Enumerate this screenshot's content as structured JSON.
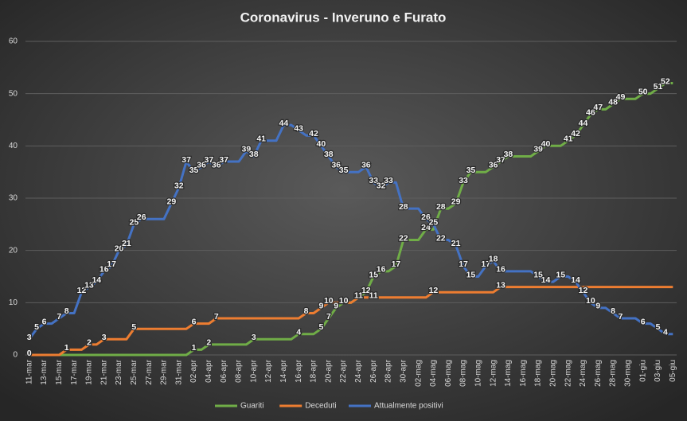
{
  "chart_data": {
    "type": "line",
    "title": "Coronavirus  - Inveruno  e Furato",
    "categories": [
      "11-mar",
      null,
      "13-mar",
      null,
      "15-mar",
      null,
      "17-mar",
      null,
      "19-mar",
      null,
      "21-mar",
      null,
      "23-mar",
      null,
      "25-mar",
      null,
      "27-mar",
      null,
      "29-mar",
      null,
      "31-mar",
      null,
      "02-apr",
      null,
      "04-apr",
      null,
      "06-apr",
      null,
      "08-apr",
      null,
      "10-apr",
      null,
      "12-apr",
      null,
      "14-apr",
      null,
      "16-apr",
      null,
      "18-apr",
      null,
      "20-apr",
      null,
      "22-apr",
      null,
      "24-apr",
      null,
      "26-apr",
      null,
      "28-apr",
      null,
      "30-apr",
      null,
      "02-mag",
      null,
      "04-mag",
      null,
      "06-mag",
      null,
      "08-mag",
      null,
      "10-mag",
      null,
      "12-mag",
      null,
      "14-mag",
      null,
      "16-mag",
      null,
      "18-mag",
      null,
      "20-mag",
      null,
      "22-mag",
      null,
      "24-mag",
      null,
      "26-mag",
      null,
      "28-mag",
      null,
      "30-mag",
      null,
      "01-giu",
      null,
      "03-giu",
      null,
      "05-giu"
    ],
    "series": [
      {
        "name": "Guariti",
        "color": "#70ad47",
        "values": [
          0,
          0,
          0,
          0,
          0,
          0,
          0,
          0,
          0,
          0,
          0,
          0,
          0,
          0,
          0,
          0,
          0,
          0,
          0,
          0,
          0,
          0,
          1,
          1,
          2,
          2,
          2,
          2,
          2,
          2,
          3,
          3,
          3,
          3,
          3,
          3,
          4,
          4,
          4,
          5,
          7,
          9,
          10,
          10,
          11,
          12,
          15,
          16,
          16,
          17,
          22,
          22,
          22,
          24,
          24,
          28,
          28,
          29,
          33,
          35,
          35,
          35,
          36,
          37,
          38,
          38,
          38,
          38,
          39,
          40,
          40,
          40,
          41,
          42,
          44,
          46,
          47,
          47,
          48,
          49,
          49,
          49,
          50,
          50,
          51,
          52,
          52
        ],
        "value_labels": [
          null,
          null,
          null,
          null,
          null,
          null,
          null,
          null,
          null,
          null,
          null,
          null,
          null,
          null,
          null,
          null,
          null,
          null,
          null,
          null,
          null,
          null,
          "1",
          null,
          "2",
          null,
          null,
          null,
          null,
          null,
          "3",
          null,
          null,
          null,
          null,
          null,
          "4",
          null,
          null,
          "5",
          "7",
          "9",
          "10",
          null,
          "11",
          "12",
          "15",
          "16",
          null,
          "17",
          "22",
          null,
          null,
          "24",
          null,
          "28",
          null,
          "29",
          "33",
          "35",
          null,
          null,
          "36",
          "37",
          "38",
          null,
          null,
          null,
          "39",
          "40",
          null,
          null,
          "41",
          "42",
          "44",
          "46",
          "47",
          null,
          "48",
          "49",
          null,
          null,
          "50",
          null,
          "51",
          "52",
          null
        ]
      },
      {
        "name": "Deceduti",
        "color": "#ed7d31",
        "values": [
          0,
          0,
          0,
          0,
          0,
          1,
          1,
          1,
          2,
          2,
          3,
          3,
          3,
          3,
          5,
          5,
          5,
          5,
          5,
          5,
          5,
          5,
          6,
          6,
          6,
          7,
          7,
          7,
          7,
          7,
          7,
          7,
          7,
          7,
          7,
          7,
          7,
          8,
          8,
          9,
          10,
          10,
          10,
          10,
          11,
          11,
          11,
          11,
          11,
          11,
          11,
          11,
          11,
          11,
          12,
          12,
          12,
          12,
          12,
          12,
          12,
          12,
          12,
          13,
          13,
          13,
          13,
          13,
          13,
          13,
          13,
          13,
          13,
          13,
          13,
          13,
          13,
          13,
          13,
          13,
          13,
          13,
          13,
          13,
          13,
          13,
          13
        ],
        "value_labels": [
          "0",
          null,
          null,
          null,
          null,
          "1",
          null,
          null,
          "2",
          null,
          "3",
          null,
          null,
          null,
          "5",
          null,
          null,
          null,
          null,
          null,
          null,
          null,
          "6",
          null,
          null,
          "7",
          null,
          null,
          null,
          null,
          null,
          null,
          null,
          null,
          null,
          null,
          null,
          "8",
          null,
          "9",
          "10",
          null,
          "10",
          null,
          "11",
          null,
          "11",
          null,
          null,
          null,
          null,
          null,
          null,
          null,
          "12",
          null,
          null,
          null,
          null,
          null,
          null,
          null,
          null,
          "13",
          null,
          null,
          null,
          null,
          null,
          null,
          null,
          null,
          null,
          null,
          null,
          null,
          null,
          null,
          null,
          null,
          null,
          null,
          null,
          null,
          null,
          null,
          null
        ]
      },
      {
        "name": "Attualmente positivi",
        "color": "#4472c4",
        "values": [
          3,
          5,
          6,
          6,
          7,
          8,
          8,
          12,
          13,
          14,
          16,
          17,
          20,
          21,
          25,
          26,
          26,
          26,
          26,
          29,
          32,
          37,
          35,
          36,
          37,
          36,
          37,
          37,
          37,
          39,
          38,
          41,
          41,
          41,
          44,
          44,
          43,
          42,
          42,
          40,
          38,
          36,
          35,
          35,
          35,
          36,
          33,
          32,
          33,
          33,
          28,
          28,
          28,
          26,
          25,
          22,
          22,
          21,
          17,
          15,
          15,
          17,
          18,
          16,
          16,
          16,
          16,
          16,
          15,
          14,
          14,
          15,
          15,
          14,
          12,
          10,
          9,
          9,
          8,
          7,
          7,
          7,
          6,
          6,
          5,
          4,
          4
        ],
        "value_labels": [
          "3",
          "5",
          "6",
          null,
          "7",
          "8",
          null,
          "12",
          "13",
          "14",
          "16",
          "17",
          "20",
          "21",
          "25",
          "26",
          null,
          null,
          null,
          "29",
          "32",
          "37",
          "35",
          "36",
          "37",
          "36",
          "37",
          null,
          null,
          "39",
          "38",
          "41",
          null,
          null,
          "44",
          null,
          "43",
          null,
          "42",
          "40",
          "38",
          "36",
          "35",
          null,
          null,
          "36",
          "33",
          "32",
          "33",
          null,
          "28",
          null,
          null,
          "26",
          "25",
          "22",
          null,
          "21",
          "17",
          "15",
          null,
          "17",
          "18",
          "16",
          null,
          null,
          null,
          null,
          "15",
          "14",
          null,
          "15",
          null,
          "14",
          "12",
          "10",
          "9",
          null,
          "8",
          "7",
          null,
          null,
          "6",
          null,
          "5",
          "4",
          null
        ]
      }
    ],
    "ylim": [
      0,
      60
    ],
    "yticks": [
      0,
      10,
      20,
      30,
      40,
      50,
      60
    ],
    "grid": true,
    "legend": "bottom"
  }
}
